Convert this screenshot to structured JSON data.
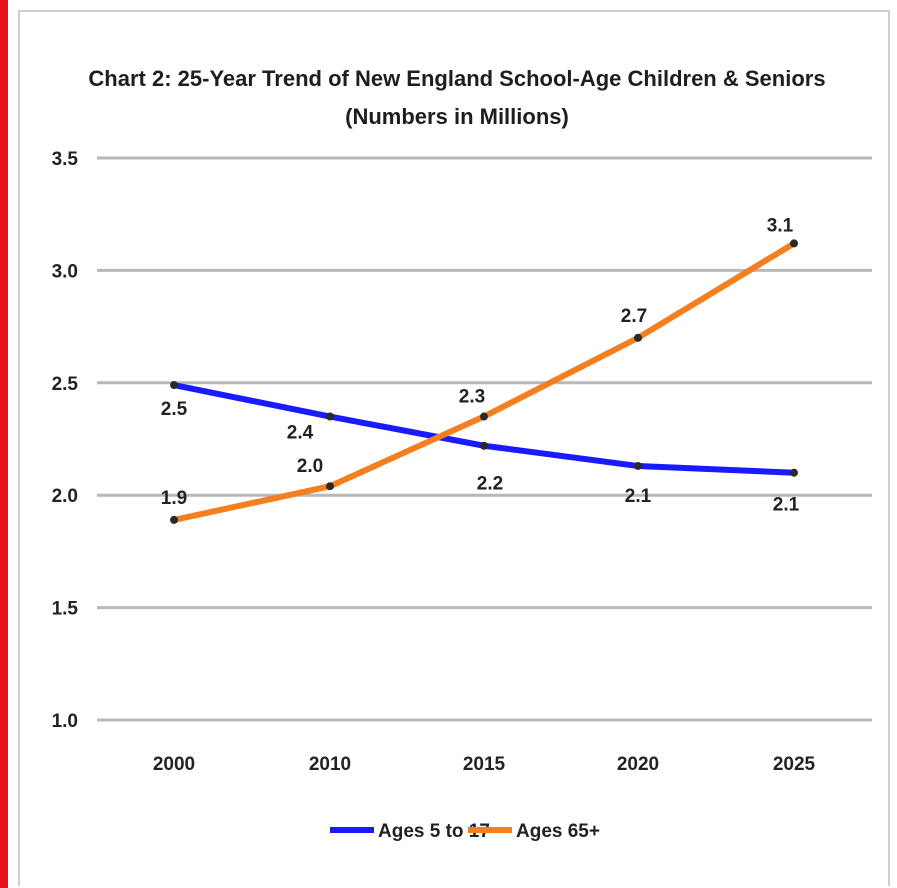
{
  "chart_data": {
    "type": "line",
    "title": "Chart 2: 25-Year Trend of New England School-Age Children & Seniors",
    "subtitle": "(Numbers in Millions)",
    "categories": [
      "2000",
      "2010",
      "2015",
      "2020",
      "2025"
    ],
    "y_ticks": [
      "1.0",
      "1.5",
      "2.0",
      "2.5",
      "3.0",
      "3.5"
    ],
    "ylim": [
      1.0,
      3.5
    ],
    "grid": true,
    "legend_position": "bottom",
    "series": [
      {
        "name": "Ages 5 to 17",
        "color": "#1a1aff",
        "values": [
          2.49,
          2.35,
          2.22,
          2.13,
          2.1
        ],
        "labels": [
          "2.5",
          "2.4",
          "2.2",
          "2.1",
          "2.1"
        ]
      },
      {
        "name": "Ages 65+",
        "color": "#f47f1f",
        "values": [
          1.89,
          2.04,
          2.35,
          2.7,
          3.12
        ],
        "labels": [
          "1.9",
          "2.0",
          "2.3",
          "2.7",
          "3.1"
        ]
      }
    ]
  }
}
